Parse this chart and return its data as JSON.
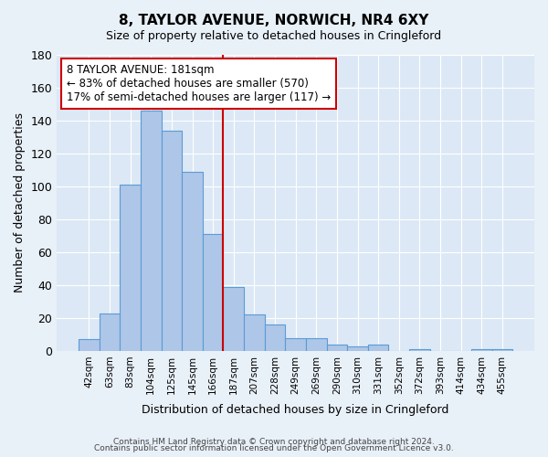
{
  "title": "8, TAYLOR AVENUE, NORWICH, NR4 6XY",
  "subtitle": "Size of property relative to detached houses in Cringleford",
  "xlabel": "Distribution of detached houses by size in Cringleford",
  "ylabel": "Number of detached properties",
  "bin_labels": [
    "42sqm",
    "63sqm",
    "83sqm",
    "104sqm",
    "125sqm",
    "145sqm",
    "166sqm",
    "187sqm",
    "207sqm",
    "228sqm",
    "249sqm",
    "269sqm",
    "290sqm",
    "310sqm",
    "331sqm",
    "352sqm",
    "372sqm",
    "393sqm",
    "414sqm",
    "434sqm",
    "455sqm"
  ],
  "bar_values": [
    7,
    23,
    101,
    146,
    134,
    109,
    71,
    39,
    22,
    16,
    8,
    8,
    4,
    3,
    4,
    0,
    1,
    0,
    0,
    1,
    1
  ],
  "bar_color": "#aec6e8",
  "bar_edge_color": "#5b9bd5",
  "vline_color": "#cc0000",
  "ylim": [
    0,
    180
  ],
  "yticks": [
    0,
    20,
    40,
    60,
    80,
    100,
    120,
    140,
    160,
    180
  ],
  "annotation_title": "8 TAYLOR AVENUE: 181sqm",
  "annotation_line1": "← 83% of detached houses are smaller (570)",
  "annotation_line2": "17% of semi-detached houses are larger (117) →",
  "annotation_box_color": "#ffffff",
  "annotation_box_edge": "#cc0000",
  "footer1": "Contains HM Land Registry data © Crown copyright and database right 2024.",
  "footer2": "Contains public sector information licensed under the Open Government Licence v3.0.",
  "background_color": "#e8f0f8",
  "plot_bg_color": "#dce8f5"
}
